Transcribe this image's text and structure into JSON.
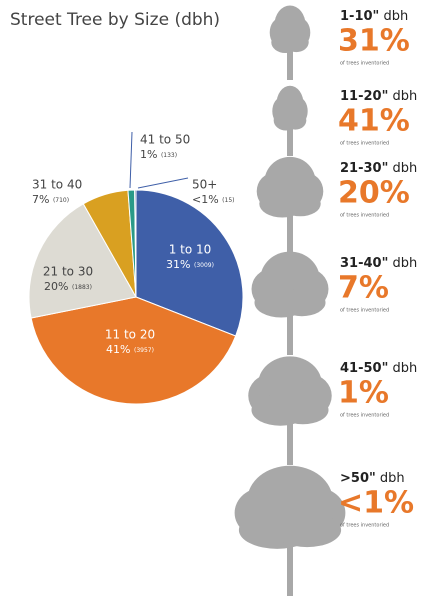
{
  "chart_data": {
    "type": "pie",
    "title": "Street Tree by Size (dbh)",
    "categories": [
      "1 to 10",
      "11 to 20",
      "21 to 30",
      "31 to 40",
      "41 to 50",
      "50+"
    ],
    "values": [
      31,
      41,
      20,
      7,
      1,
      0.2
    ],
    "value_labels": [
      "31%",
      "41%",
      "20%",
      "7%",
      "1%",
      "<1%"
    ],
    "count_labels": [
      "(3009)",
      "(3957)",
      "(1883)",
      "(710)",
      "(133)",
      "(15)"
    ],
    "colors": [
      "#3f5fa8",
      "#e8782a",
      "#dddbd3",
      "#d9a021",
      "#2a9a88",
      "#2c4d8e"
    ]
  },
  "size_classes": [
    {
      "range": "1-10\"",
      "unit": "dbh",
      "note": "of trees inventoried"
    },
    {
      "range": "11-20\"",
      "unit": "dbh",
      "note": "of trees inventoried"
    },
    {
      "range": "21-30\"",
      "unit": "dbh",
      "note": "of trees inventoried"
    },
    {
      "range": "31-40\"",
      "unit": "dbh",
      "note": "of trees inventoried"
    },
    {
      "range": "41-50\"",
      "unit": "dbh",
      "note": "of trees inventoried"
    },
    {
      "range": ">50\"",
      "unit": "dbh",
      "note": "of trees inventoried"
    }
  ]
}
